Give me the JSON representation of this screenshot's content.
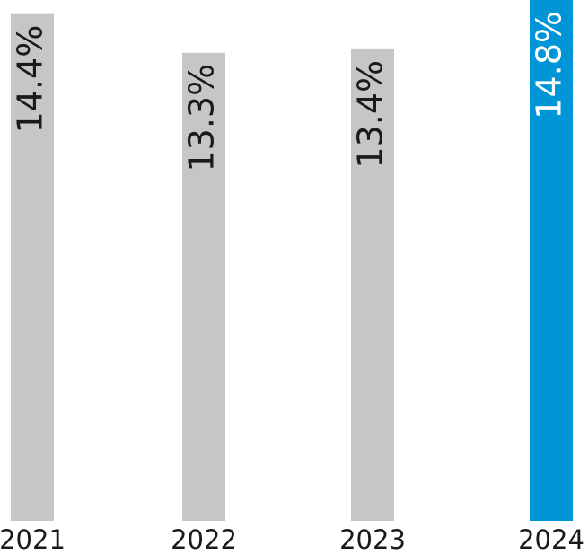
{
  "chart_data": {
    "type": "bar",
    "categories": [
      "2021",
      "2022",
      "2023",
      "2024"
    ],
    "values": [
      14.4,
      13.3,
      13.4,
      14.8
    ],
    "value_labels": [
      "14.4%",
      "13.3%",
      "13.4%",
      "14.8%"
    ],
    "colors": [
      "#c6c6c6",
      "#c6c6c6",
      "#c6c6c6",
      "#0095d6"
    ],
    "label_colors": [
      "#1a1a1a",
      "#1a1a1a",
      "#1a1a1a",
      "#ffffff"
    ],
    "ylim": [
      0,
      14.8
    ]
  }
}
